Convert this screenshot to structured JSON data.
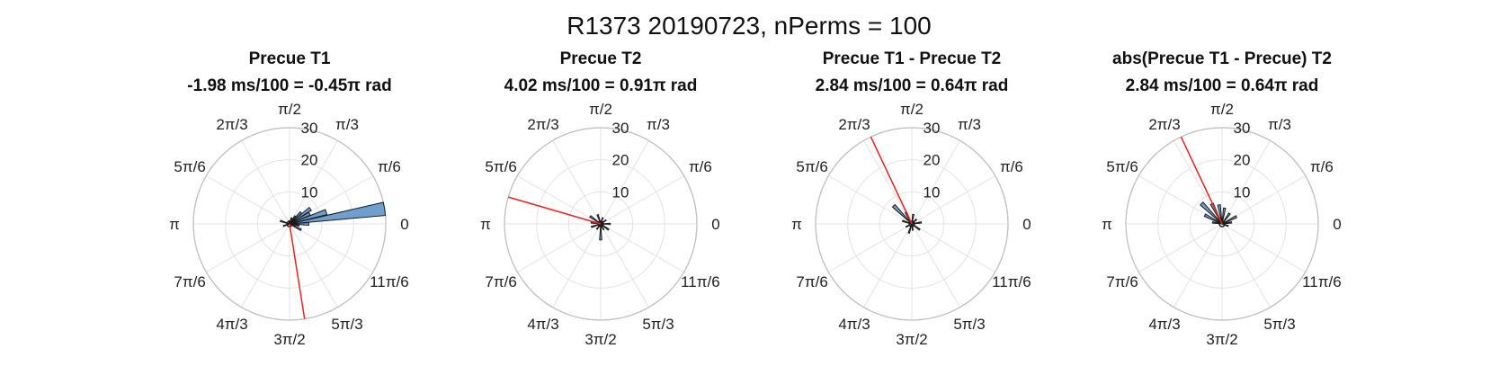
{
  "figure": {
    "title": "R1373 20190723, nPerms = 100"
  },
  "theta_tick_labels": [
    "0",
    "π/6",
    "π/3",
    "π/2",
    "2π/3",
    "5π/6",
    "π",
    "7π/6",
    "4π/3",
    "3π/2",
    "5π/3",
    "11π/6"
  ],
  "r_tick_labels": [
    "10",
    "20",
    "30"
  ],
  "colors": {
    "bars": "#6e9fcf",
    "bar_edge": "#1a1a1a",
    "observed_line": "#e8231f"
  },
  "chart_data": [
    {
      "type": "polar-histogram",
      "title": "Precue T1",
      "subtitle": "-1.98 ms/100 = -0.45π rad",
      "rlim": [
        0,
        30
      ],
      "r_ticks": [
        10,
        20,
        30
      ],
      "observed_angle_pi": -0.45,
      "bins": [
        {
          "angle_pi": 0.0,
          "count": 6
        },
        {
          "angle_pi": 0.05,
          "count": 30
        },
        {
          "angle_pi": 0.1,
          "count": 12
        },
        {
          "angle_pi": 0.15,
          "count": 7
        },
        {
          "angle_pi": 0.2,
          "count": 8
        },
        {
          "angle_pi": 0.25,
          "count": 5
        },
        {
          "angle_pi": 0.3,
          "count": 3
        },
        {
          "angle_pi": 0.4,
          "count": 2
        },
        {
          "angle_pi": 0.6,
          "count": 1
        },
        {
          "angle_pi": 0.9,
          "count": 3
        },
        {
          "angle_pi": 1.1,
          "count": 2
        },
        {
          "angle_pi": 1.85,
          "count": 4
        },
        {
          "angle_pi": 1.95,
          "count": 3
        }
      ]
    },
    {
      "type": "polar-histogram",
      "title": "Precue T2",
      "subtitle": "4.02 ms/100 = 0.91π rad",
      "rlim": [
        0,
        30
      ],
      "r_ticks": [
        10,
        20,
        30
      ],
      "observed_angle_pi": 0.91,
      "bins": [
        {
          "angle_pi": 0.0,
          "count": 3
        },
        {
          "angle_pi": 0.2,
          "count": 2
        },
        {
          "angle_pi": 0.4,
          "count": 2
        },
        {
          "angle_pi": 0.6,
          "count": 3
        },
        {
          "angle_pi": 0.8,
          "count": 4
        },
        {
          "angle_pi": 0.95,
          "count": 3
        },
        {
          "angle_pi": 1.1,
          "count": 3
        },
        {
          "angle_pi": 1.3,
          "count": 2
        },
        {
          "angle_pi": 1.5,
          "count": 5
        },
        {
          "angle_pi": 1.65,
          "count": 2
        },
        {
          "angle_pi": 1.8,
          "count": 3
        }
      ]
    },
    {
      "type": "polar-histogram",
      "title": "Precue T1 - Precue T2",
      "subtitle": "2.84 ms/100 = 0.64π rad",
      "rlim": [
        0,
        30
      ],
      "r_ticks": [
        10,
        20,
        30
      ],
      "observed_angle_pi": 0.64,
      "bins": [
        {
          "angle_pi": 0.05,
          "count": 3
        },
        {
          "angle_pi": 0.25,
          "count": 2
        },
        {
          "angle_pi": 0.45,
          "count": 3
        },
        {
          "angle_pi": 0.65,
          "count": 4
        },
        {
          "angle_pi": 0.75,
          "count": 8
        },
        {
          "angle_pi": 0.9,
          "count": 3
        },
        {
          "angle_pi": 1.15,
          "count": 2
        },
        {
          "angle_pi": 1.4,
          "count": 3
        },
        {
          "angle_pi": 1.55,
          "count": 2
        },
        {
          "angle_pi": 1.8,
          "count": 3
        }
      ]
    },
    {
      "type": "polar-histogram",
      "title": "abs(Precue T1 - Precue) T2",
      "subtitle": "2.84 ms/100 = 0.64π rad",
      "rlim": [
        0,
        30
      ],
      "r_ticks": [
        10,
        20,
        30
      ],
      "observed_angle_pi": 0.64,
      "bins": [
        {
          "angle_pi": 0.05,
          "count": 3
        },
        {
          "angle_pi": 0.15,
          "count": 5
        },
        {
          "angle_pi": 0.3,
          "count": 4
        },
        {
          "angle_pi": 0.45,
          "count": 5
        },
        {
          "angle_pi": 0.55,
          "count": 6
        },
        {
          "angle_pi": 0.65,
          "count": 7
        },
        {
          "angle_pi": 0.75,
          "count": 9
        },
        {
          "angle_pi": 0.85,
          "count": 6
        },
        {
          "angle_pi": 0.95,
          "count": 3
        },
        {
          "angle_pi": 1.9,
          "count": 2
        }
      ]
    }
  ]
}
